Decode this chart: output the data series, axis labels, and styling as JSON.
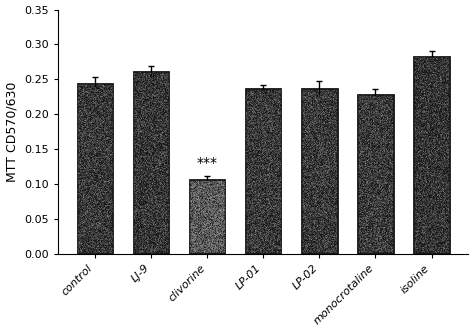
{
  "categories": [
    "control",
    "LJ-9",
    "clivorine",
    "LP-01",
    "LP-02",
    "monocrotaline",
    "isoline"
  ],
  "values": [
    0.245,
    0.262,
    0.107,
    0.237,
    0.237,
    0.229,
    0.284
  ],
  "errors": [
    0.008,
    0.007,
    0.005,
    0.005,
    0.01,
    0.007,
    0.006
  ],
  "bar_color": "#1a1a1a",
  "bar_width": 0.65,
  "ylabel": "MTT CD570/630",
  "ylim": [
    0.0,
    0.35
  ],
  "yticks": [
    0.0,
    0.05,
    0.1,
    0.15,
    0.2,
    0.25,
    0.3,
    0.35
  ],
  "annotation_text": "***",
  "annotation_index": 2,
  "annotation_fontsize": 10,
  "ylabel_fontsize": 9,
  "tick_fontsize": 8,
  "xtick_fontsize": 8,
  "background_color": "#ffffff",
  "figure_facecolor": "#ffffff",
  "noise_density": 8000,
  "noise_color": "#888888"
}
